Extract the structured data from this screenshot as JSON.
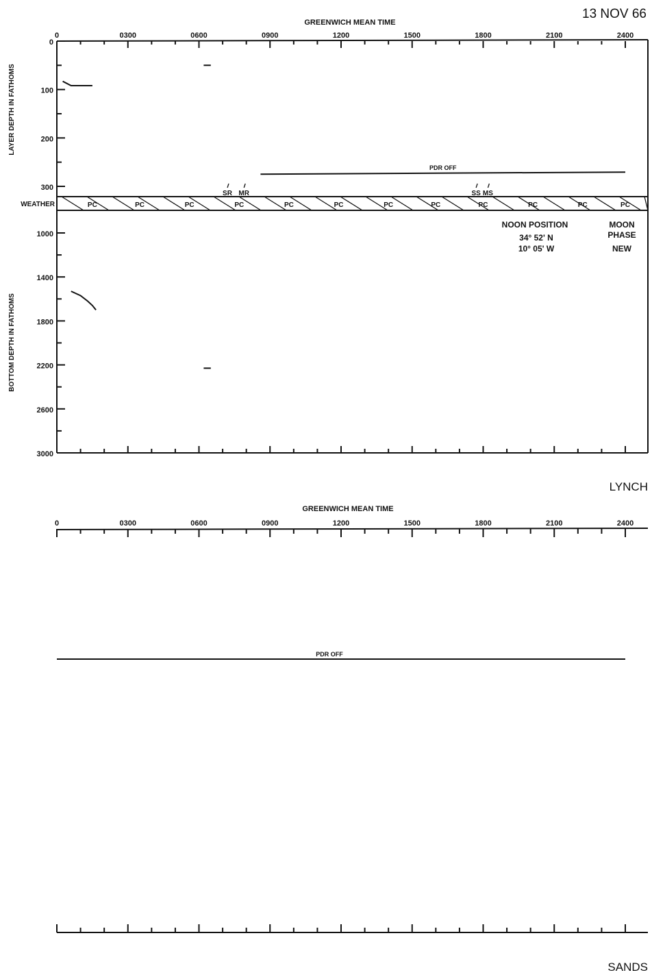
{
  "page": {
    "date": "13 NOV 66",
    "ship_top": "LYNCH",
    "ship_bottom": "SANDS"
  },
  "chart_data": [
    {
      "type": "line",
      "title": "GREENWICH MEAN TIME",
      "station": "LYNCH",
      "x_ticks": [
        "0",
        "0300",
        "0600",
        "0900",
        "1200",
        "1500",
        "1800",
        "2100",
        "2400"
      ],
      "layer_axis": {
        "ylabel": "LAYER DEPTH IN FATHOMS",
        "ticks": [
          "0",
          "100",
          "200",
          "300"
        ],
        "ylim": [
          0,
          300
        ],
        "series": [
          {
            "points": [
              [
                0.25,
                83
              ],
              [
                0.6,
                92
              ],
              [
                1.5,
                92
              ]
            ]
          },
          {
            "points": [
              [
                6.2,
                50
              ],
              [
                6.5,
                50
              ]
            ]
          }
        ],
        "annotations": [
          {
            "label": "PDR OFF",
            "start": 8.6,
            "end": 24,
            "depth": 272
          }
        ]
      },
      "weather": {
        "label": "WEATHER",
        "pattern": "hatched",
        "conditions": [
          {
            "time": 1.5,
            "code": "PC"
          },
          {
            "time": 3.5,
            "code": "PC"
          },
          {
            "time": 5.6,
            "code": "PC"
          },
          {
            "time": 7.7,
            "code": "PC"
          },
          {
            "time": 9.8,
            "code": "PC"
          },
          {
            "time": 11.9,
            "code": "PC"
          },
          {
            "time": 14.0,
            "code": "PC"
          },
          {
            "time": 16.0,
            "code": "PC"
          },
          {
            "time": 18.0,
            "code": "PC"
          },
          {
            "time": 20.1,
            "code": "PC"
          },
          {
            "time": 22.2,
            "code": "PC"
          },
          {
            "time": 24.0,
            "code": "PC"
          }
        ],
        "events": [
          {
            "label": "SR",
            "time": 7.2
          },
          {
            "label": "MR",
            "time": 7.9
          },
          {
            "label": "SS",
            "time": 17.7
          },
          {
            "label": "MS",
            "time": 18.2
          }
        ]
      },
      "bottom_axis": {
        "ylabel": "BOTTOM DEPTH IN FATHOMS",
        "ticks": [
          "1000",
          "1400",
          "1800",
          "2200",
          "2600",
          "3000"
        ],
        "ylim": [
          1000,
          3000
        ],
        "series": [
          {
            "points": [
              [
                0.6,
                1530
              ],
              [
                1.0,
                1570
              ],
              [
                1.3,
                1620
              ],
              [
                1.5,
                1660
              ],
              [
                1.65,
                1700
              ]
            ]
          },
          {
            "points": [
              [
                6.2,
                2230
              ],
              [
                6.5,
                2230
              ]
            ]
          }
        ]
      },
      "noon_position": {
        "label": "NOON POSITION",
        "lat": "34° 52' N",
        "lon": "10° 05' W"
      },
      "moon_phase": {
        "label": "MOON PHASE",
        "line1": "MOON",
        "line2": "PHASE",
        "value": "NEW"
      }
    },
    {
      "type": "line",
      "title": "GREENWICH MEAN TIME",
      "station": "SANDS",
      "x_ticks": [
        "0",
        "0300",
        "0600",
        "0900",
        "1200",
        "1500",
        "1800",
        "2100",
        "2400"
      ],
      "annotations": [
        {
          "label": "PDR OFF",
          "start": 0,
          "end": 24
        }
      ]
    }
  ]
}
